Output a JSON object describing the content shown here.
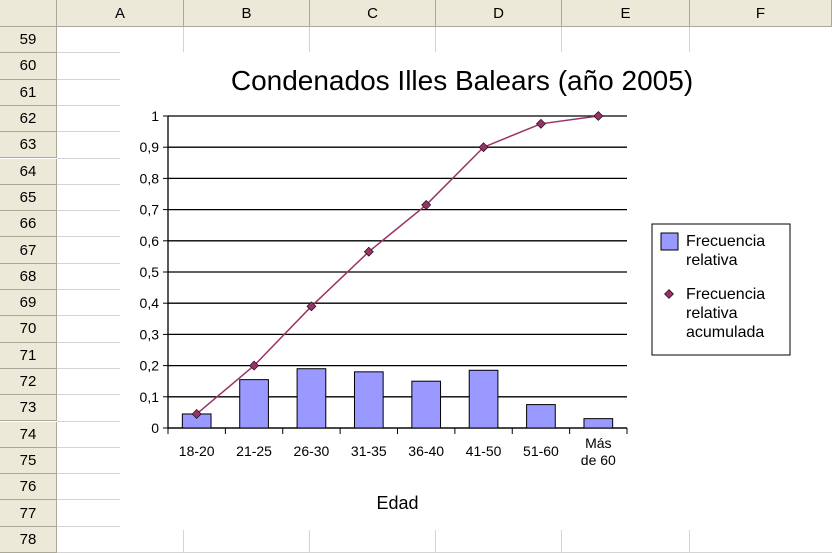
{
  "sheet": {
    "columns": [
      "A",
      "B",
      "C",
      "D",
      "E",
      "F"
    ],
    "rows": [
      "59",
      "60",
      "61",
      "62",
      "63",
      "64",
      "65",
      "66",
      "67",
      "68",
      "69",
      "70",
      "71",
      "72",
      "73",
      "74",
      "75",
      "76",
      "77",
      "78"
    ]
  },
  "colors": {
    "bar_fill": "#9999ff",
    "bar_stroke": "#000000",
    "line": "#993366",
    "marker": "#993366"
  },
  "chart_data": {
    "type": "bar",
    "title": "Condenados Illes Balears (año 2005)",
    "xlabel": "Edad",
    "ylabel": "",
    "ylim": [
      0,
      1
    ],
    "yticks": [
      "0",
      "0,1",
      "0,2",
      "0,3",
      "0,4",
      "0,5",
      "0,6",
      "0,7",
      "0,8",
      "0,9",
      "1"
    ],
    "grid": true,
    "legend_position": "right",
    "categories": [
      "18-20",
      "21-25",
      "26-30",
      "31-35",
      "36-40",
      "41-50",
      "51-60",
      "Más de 60"
    ],
    "series": [
      {
        "name": "Frecuencia relativa",
        "type": "bar",
        "values": [
          0.045,
          0.155,
          0.19,
          0.18,
          0.15,
          0.185,
          0.075,
          0.03
        ]
      },
      {
        "name": "Frecuencia relativa acumulada",
        "type": "line",
        "values": [
          0.045,
          0.2,
          0.39,
          0.565,
          0.715,
          0.9,
          0.975,
          1.0
        ]
      }
    ],
    "legend_lines": [
      [
        "Frecuencia",
        "relativa"
      ],
      [
        "Frecuencia",
        "relativa",
        "acumulada"
      ]
    ]
  }
}
